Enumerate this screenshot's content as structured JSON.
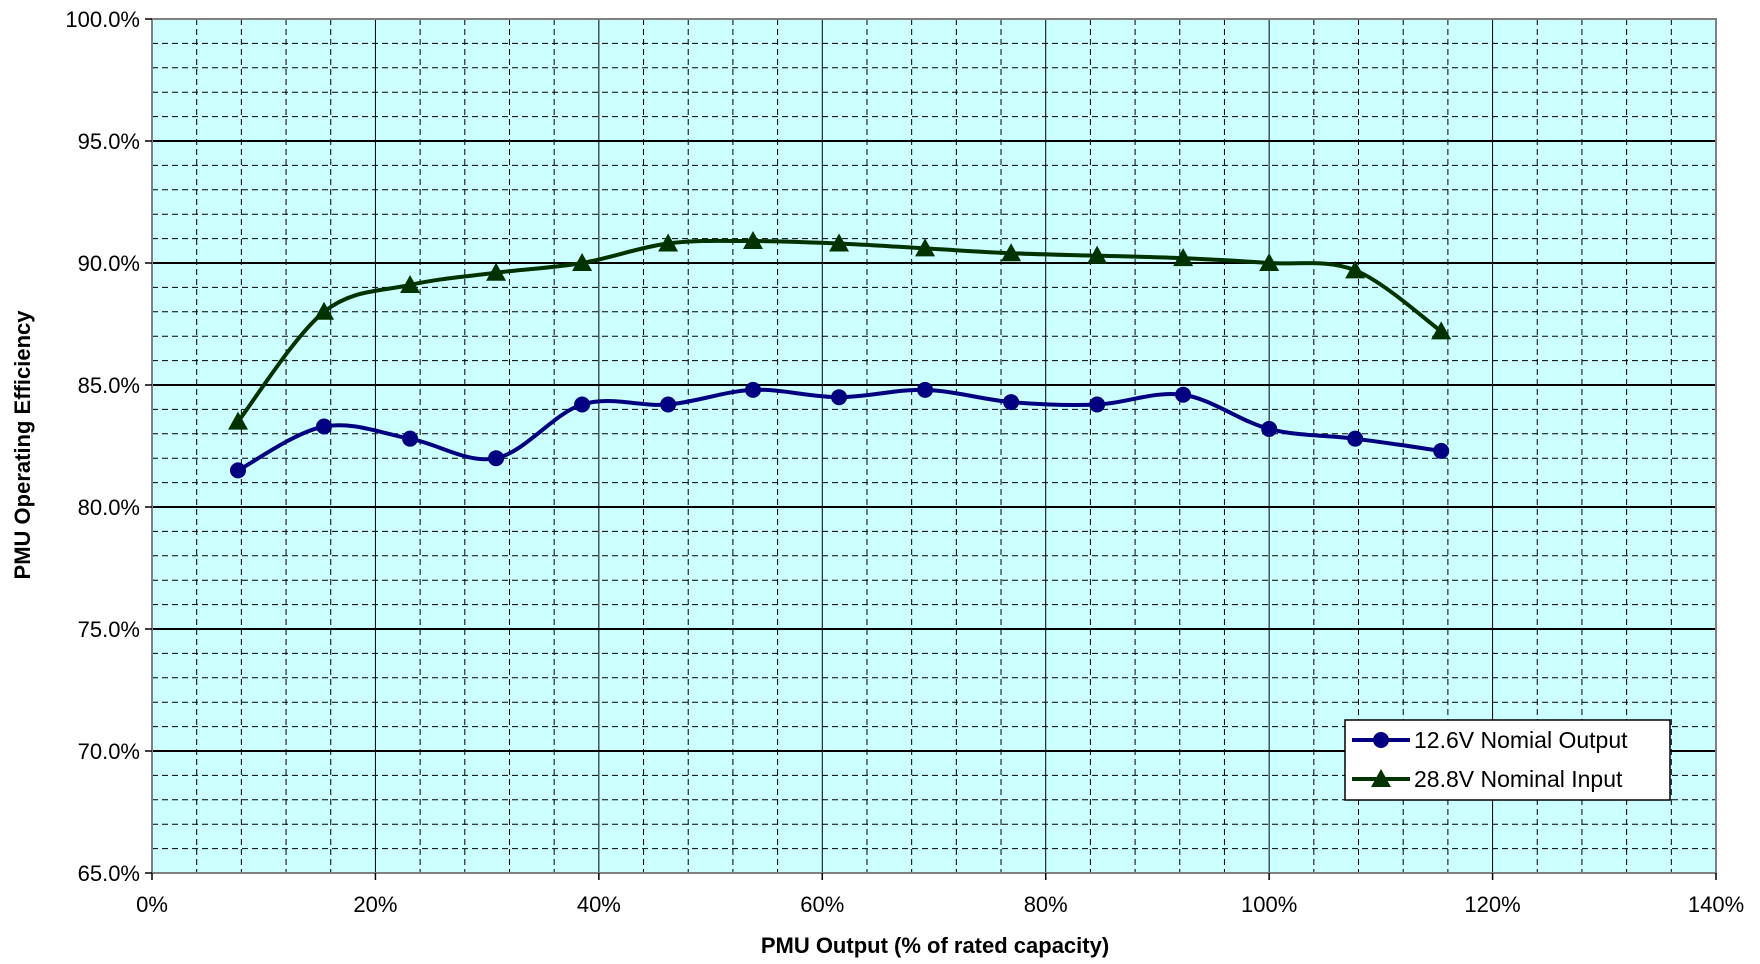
{
  "chart_data": {
    "type": "line",
    "xlabel": "PMU Output (% of rated capacity)",
    "ylabel": "PMU Operating Efficiency",
    "xlim": [
      0,
      140
    ],
    "ylim": [
      65,
      100
    ],
    "x_ticks": [
      "0%",
      "20%",
      "40%",
      "60%",
      "80%",
      "100%",
      "120%",
      "140%"
    ],
    "y_ticks": [
      "65.0%",
      "70.0%",
      "75.0%",
      "80.0%",
      "85.0%",
      "90.0%",
      "95.0%",
      "100.0%"
    ],
    "grid": true,
    "legend_position": "bottom-right",
    "plot_background": "#ccffff",
    "series": [
      {
        "name": "12.6V Nomial Output",
        "color": "#000080",
        "marker": "circle",
        "x": [
          7.7,
          15.4,
          23.1,
          30.8,
          38.5,
          46.2,
          53.8,
          61.5,
          69.2,
          76.9,
          84.6,
          92.3,
          100.0,
          107.7,
          115.4
        ],
        "y": [
          81.5,
          83.3,
          82.8,
          82.0,
          84.2,
          84.2,
          84.8,
          84.5,
          84.8,
          84.3,
          84.2,
          84.6,
          83.2,
          82.8,
          82.3
        ]
      },
      {
        "name": "28.8V Nominal Input",
        "color": "#003300",
        "marker": "triangle",
        "x": [
          7.7,
          15.4,
          23.1,
          30.8,
          38.5,
          46.2,
          53.8,
          61.5,
          69.2,
          76.9,
          84.6,
          92.3,
          100.0,
          107.7,
          115.4
        ],
        "y": [
          83.5,
          88.0,
          89.1,
          89.6,
          90.0,
          90.8,
          90.9,
          90.8,
          90.6,
          90.4,
          90.3,
          90.2,
          90.0,
          89.7,
          87.2
        ]
      }
    ]
  }
}
